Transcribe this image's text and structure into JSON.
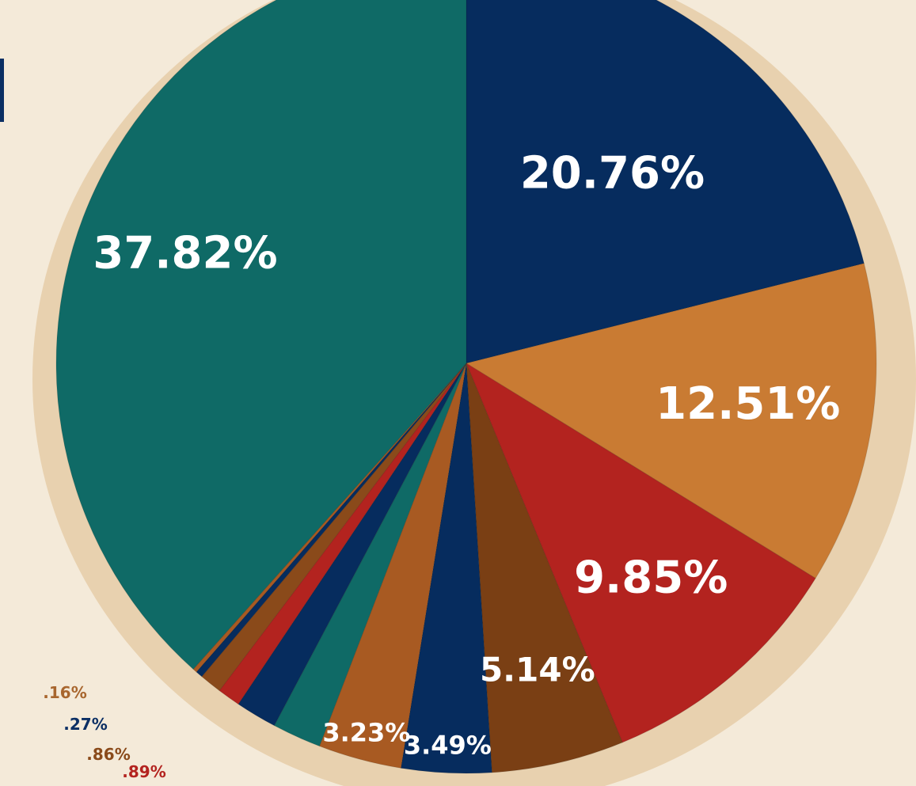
{
  "colors": {
    "background": "#f4ead9",
    "agate_halo": "#e4c8a0",
    "teal": "#0f6a66",
    "navy": "#062c5e",
    "amber": "#c97b33",
    "red": "#b3231f",
    "brown": "#7a3f14",
    "dark_label": "#0b2f64"
  },
  "chart_data": {
    "type": "pie",
    "start": "12 o'clock",
    "direction": "clockwise",
    "slices": [
      {
        "label": "20.76%",
        "value": 20.76,
        "color": "#062c5e"
      },
      {
        "label": "12.51%",
        "value": 12.51,
        "color": "#c97b33"
      },
      {
        "label": "9.85%",
        "value": 9.85,
        "color": "#b3231f"
      },
      {
        "label": "5.14%",
        "value": 5.14,
        "color": "#7a3f14"
      },
      {
        "label": "3.49%",
        "value": 3.49,
        "color": "#062c5e"
      },
      {
        "label": "3.23%",
        "value": 3.23,
        "color": "#a85a22"
      },
      {
        "label": "",
        "value": 1.9,
        "color": "#0f6a66"
      },
      {
        "label": "",
        "value": 1.6,
        "color": "#062c5e"
      },
      {
        "label": ".89%",
        "value": 0.89,
        "color": "#b3231f"
      },
      {
        "label": ".86%",
        "value": 0.86,
        "color": "#8a4a1a"
      },
      {
        "label": ".27%",
        "value": 0.27,
        "color": "#062c5e"
      },
      {
        "label": ".16%",
        "value": 0.16,
        "color": "#a85a22"
      },
      {
        "label": "37.82%",
        "value": 37.82,
        "color": "#0f6a66"
      }
    ]
  }
}
